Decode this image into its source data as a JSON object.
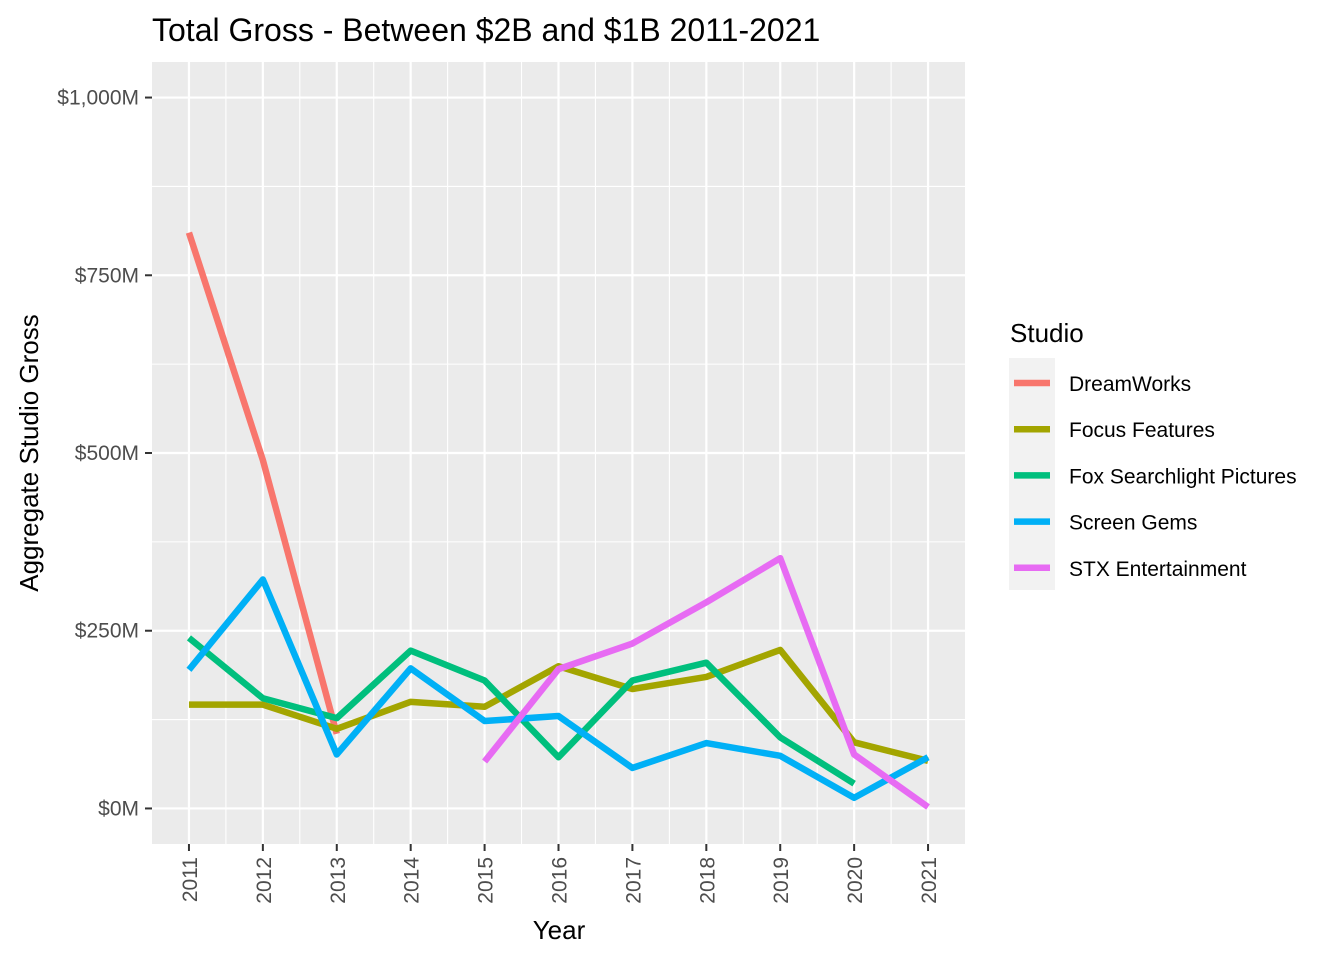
{
  "chart_data": {
    "type": "line",
    "title": "Total Gross - Between $2B and $1B 2011-2021",
    "xlabel": "Year",
    "ylabel": "Aggregate Studio Gross",
    "x": [
      2011,
      2012,
      2013,
      2014,
      2015,
      2016,
      2017,
      2018,
      2019,
      2020,
      2021
    ],
    "xlim": [
      2010.5,
      2021.5
    ],
    "ylim": [
      -50,
      1050
    ],
    "y_ticks": [
      0,
      250,
      500,
      750,
      1000
    ],
    "y_tick_labels": [
      "$0M",
      "$250M",
      "$500M",
      "$750M",
      "$1,000M"
    ],
    "x_tick_labels": [
      "2011",
      "2012",
      "2013",
      "2014",
      "2015",
      "2016",
      "2017",
      "2018",
      "2019",
      "2020",
      "2021"
    ],
    "grid": true,
    "legend_title": "Studio",
    "legend_position": "right",
    "series": [
      {
        "name": "DreamWorks",
        "color": "#F8766D",
        "points": [
          [
            2011,
            810
          ],
          [
            2012,
            490
          ],
          [
            2013,
            105
          ]
        ]
      },
      {
        "name": "Focus Features",
        "color": "#A3A500",
        "points": [
          [
            2011,
            146
          ],
          [
            2012,
            146
          ],
          [
            2013,
            112
          ],
          [
            2014,
            150
          ],
          [
            2015,
            143
          ],
          [
            2016,
            200
          ],
          [
            2017,
            168
          ],
          [
            2018,
            185
          ],
          [
            2019,
            223
          ],
          [
            2020,
            93
          ],
          [
            2021,
            67
          ]
        ]
      },
      {
        "name": "Fox Searchlight Pictures",
        "color": "#00BF7D",
        "points": [
          [
            2011,
            240
          ],
          [
            2012,
            155
          ],
          [
            2013,
            127
          ],
          [
            2014,
            222
          ],
          [
            2015,
            180
          ],
          [
            2016,
            72
          ],
          [
            2017,
            180
          ],
          [
            2018,
            205
          ],
          [
            2019,
            100
          ],
          [
            2020,
            35
          ]
        ]
      },
      {
        "name": "Screen Gems",
        "color": "#00B0F6",
        "points": [
          [
            2011,
            195
          ],
          [
            2012,
            322
          ],
          [
            2013,
            76
          ],
          [
            2014,
            197
          ],
          [
            2015,
            123
          ],
          [
            2016,
            130
          ],
          [
            2017,
            57
          ],
          [
            2018,
            92
          ],
          [
            2019,
            74
          ],
          [
            2020,
            15
          ],
          [
            2021,
            72
          ]
        ]
      },
      {
        "name": "STX Entertainment",
        "color": "#E76BF3",
        "points": [
          [
            2015,
            66
          ],
          [
            2016,
            196
          ],
          [
            2017,
            232
          ],
          [
            2018,
            290
          ],
          [
            2019,
            352
          ],
          [
            2020,
            76
          ],
          [
            2021,
            2
          ]
        ]
      }
    ]
  }
}
